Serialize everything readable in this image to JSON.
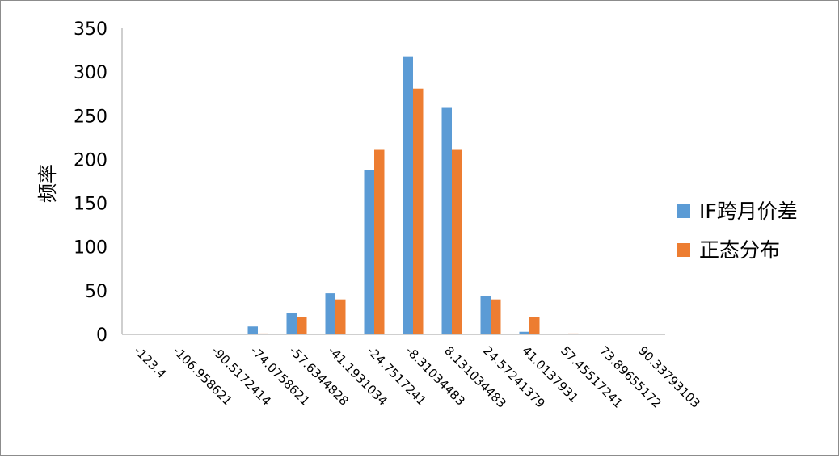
{
  "chart_data": {
    "type": "bar",
    "title": "",
    "xlabel": "",
    "ylabel": "频率",
    "ylim": [
      0,
      350
    ],
    "yticks": [
      0,
      50,
      100,
      150,
      200,
      250,
      300,
      350
    ],
    "grid": false,
    "legend_position": "right",
    "categories": [
      "-123.4",
      "-106.958621",
      "-90.5172414",
      "-74.0758621",
      "-57.6344828",
      "-41.1931034",
      "-24.7517241",
      "-8.31034483",
      "8.131034483",
      "24.57241379",
      "41.0137931",
      "57.45517241",
      "73.89655172",
      "90.33793103"
    ],
    "series": [
      {
        "name": "IF跨月价差",
        "color": "#5b9bd5",
        "values": [
          0,
          0,
          0,
          9,
          24,
          47,
          188,
          318,
          259,
          44,
          3,
          0,
          0,
          0
        ]
      },
      {
        "name": "正态分布",
        "color": "#ed7d31",
        "values": [
          0,
          0,
          0,
          1,
          20,
          40,
          211,
          281,
          211,
          40,
          20,
          1,
          0,
          0
        ]
      }
    ]
  }
}
